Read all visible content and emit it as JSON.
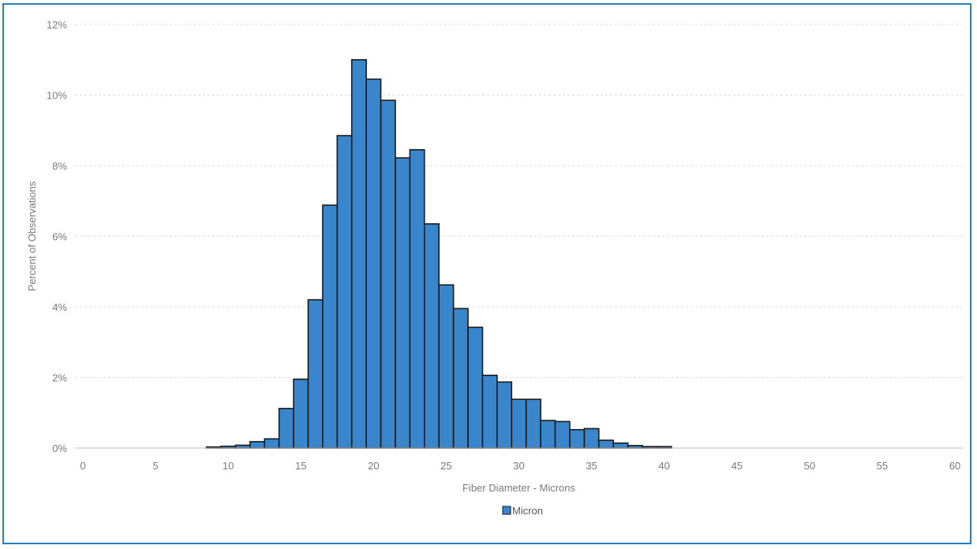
{
  "chart_data": {
    "type": "bar",
    "title": "",
    "xlabel": "Fiber Diameter - Microns",
    "ylabel": "Percent of Observations",
    "xlim": [
      0,
      60
    ],
    "ylim": [
      0,
      12
    ],
    "x_ticks": [
      0,
      5,
      10,
      15,
      20,
      25,
      30,
      35,
      40,
      45,
      50,
      55,
      60
    ],
    "x_tick_labels": [
      "0",
      "5",
      "10",
      "15",
      "20",
      "25",
      "30",
      "35",
      "40",
      "45",
      "50",
      "55",
      "60"
    ],
    "y_ticks": [
      0,
      2,
      4,
      6,
      8,
      10,
      12
    ],
    "y_tick_labels": [
      "0%",
      "2%",
      "4%",
      "6%",
      "8%",
      "10%",
      "12%"
    ],
    "grid": true,
    "legend_position": "bottom",
    "bar_color": "#3a86cc",
    "bar_edge_color": "#1a1a1a",
    "series": [
      {
        "name": "Micron",
        "bins": [
          8.5,
          9.5,
          10.5,
          11.5,
          12.5,
          13.5,
          14.5,
          15.5,
          16.5,
          17.5,
          18.5,
          19.5,
          20.5,
          21.5,
          22.5,
          23.5,
          24.5,
          25.5,
          26.5,
          27.5,
          28.5,
          29.5,
          30.5,
          31.5,
          32.5,
          33.5,
          34.5,
          35.5,
          36.5,
          37.5,
          38.5,
          39.5
        ],
        "values": [
          0.03,
          0.05,
          0.08,
          0.18,
          0.26,
          1.12,
          1.95,
          4.2,
          6.88,
          8.85,
          11.0,
          10.45,
          9.85,
          8.22,
          8.45,
          6.35,
          4.62,
          3.95,
          3.42,
          2.06,
          1.87,
          1.38,
          1.38,
          0.78,
          0.75,
          0.52,
          0.55,
          0.22,
          0.14,
          0.07,
          0.04,
          0.04
        ]
      }
    ]
  },
  "legend": {
    "label": "Micron"
  }
}
